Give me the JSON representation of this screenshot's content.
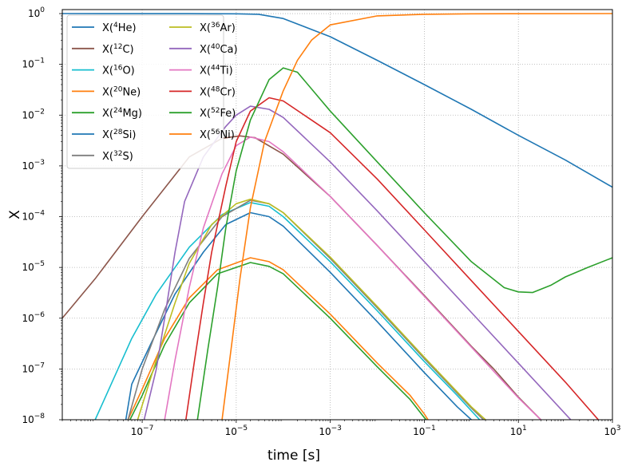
{
  "chart_data": {
    "type": "line",
    "title": "",
    "xlabel": "time [s]",
    "ylabel": "X",
    "xscale": "log",
    "yscale": "log",
    "xlim": [
      2e-09,
      1000
    ],
    "ylim": [
      1e-08,
      1.2
    ],
    "grid": true,
    "legend_placement": "top-left",
    "legend_columns": 2,
    "x_ticks": [
      {
        "value": 1e-07,
        "base": "10",
        "exp": "−7"
      },
      {
        "value": 1e-05,
        "base": "10",
        "exp": "−5"
      },
      {
        "value": 0.001,
        "base": "10",
        "exp": "−3"
      },
      {
        "value": 0.1,
        "base": "10",
        "exp": "−1"
      },
      {
        "value": 10,
        "base": "10",
        "exp": "1"
      },
      {
        "value": 1000,
        "base": "10",
        "exp": "3"
      }
    ],
    "y_ticks": [
      {
        "value": 1e-08,
        "base": "10",
        "exp": "−8"
      },
      {
        "value": 1e-07,
        "base": "10",
        "exp": "−7"
      },
      {
        "value": 1e-06,
        "base": "10",
        "exp": "−6"
      },
      {
        "value": 1e-05,
        "base": "10",
        "exp": "−5"
      },
      {
        "value": 0.0001,
        "base": "10",
        "exp": "−4"
      },
      {
        "value": 0.001,
        "base": "10",
        "exp": "−3"
      },
      {
        "value": 0.01,
        "base": "10",
        "exp": "−2"
      },
      {
        "value": 0.1,
        "base": "10",
        "exp": "−1"
      },
      {
        "value": 1,
        "base": "10",
        "exp": "0"
      }
    ],
    "series": [
      {
        "name": "X(4He)",
        "pre": "X(",
        "sup": "4",
        "el": "He",
        "post": ")",
        "color": "#1f77b4",
        "points": [
          [
            2e-09,
            1
          ],
          [
            1e-06,
            0.999
          ],
          [
            1e-05,
            0.99
          ],
          [
            3e-05,
            0.97
          ],
          [
            0.0001,
            0.8
          ],
          [
            0.001,
            0.35
          ],
          [
            0.01,
            0.12
          ],
          [
            0.1,
            0.04
          ],
          [
            1,
            0.013
          ],
          [
            10,
            0.004
          ],
          [
            100,
            0.0013
          ],
          [
            1000,
            0.00038
          ]
        ]
      },
      {
        "name": "X(12C)",
        "pre": "X(",
        "sup": "12",
        "el": "C",
        "post": ")",
        "color": "#8c564b",
        "points": [
          [
            2e-09,
            1e-06
          ],
          [
            1e-08,
            6e-06
          ],
          [
            1e-07,
            0.0001
          ],
          [
            1e-06,
            0.0015
          ],
          [
            5e-06,
            0.0035
          ],
          [
            1.2e-05,
            0.0039
          ],
          [
            2.5e-05,
            0.0036
          ],
          [
            0.0001,
            0.0017
          ],
          [
            0.001,
            0.00025
          ],
          [
            0.01,
            2.7e-05
          ],
          [
            0.1,
            2.8e-06
          ],
          [
            1,
            2.8e-07
          ],
          [
            3,
            1e-07
          ],
          [
            10,
            2.8e-08
          ],
          [
            30,
            1e-08
          ]
        ]
      },
      {
        "name": "X(16O)",
        "pre": "X(",
        "sup": "16",
        "el": "O",
        "post": ")",
        "color": "#17becf",
        "points": [
          [
            1e-08,
            1e-08
          ],
          [
            6e-08,
            4e-07
          ],
          [
            2e-07,
            3e-06
          ],
          [
            1e-06,
            2.5e-05
          ],
          [
            5e-06,
            0.00011
          ],
          [
            2e-05,
            0.00019
          ],
          [
            5e-05,
            0.00016
          ],
          [
            0.0001,
            0.0001
          ],
          [
            0.001,
            1.3e-05
          ],
          [
            0.01,
            1.4e-06
          ],
          [
            0.1,
            1.4e-07
          ],
          [
            0.5,
            3e-08
          ],
          [
            1,
            1.5e-08
          ],
          [
            1.5,
            1e-08
          ]
        ]
      },
      {
        "name": "X(20Ne)",
        "pre": "X(",
        "sup": "20",
        "el": "Ne",
        "post": ")",
        "color": "#ff7f0e",
        "points": [
          [
            5e-08,
            1e-08
          ],
          [
            1e-07,
            4e-08
          ],
          [
            3e-07,
            4e-07
          ],
          [
            1e-06,
            2.5e-06
          ],
          [
            4e-06,
            9e-06
          ],
          [
            2e-05,
            1.55e-05
          ],
          [
            5e-05,
            1.3e-05
          ],
          [
            0.0001,
            9e-06
          ],
          [
            0.001,
            1.2e-06
          ],
          [
            0.01,
            1.3e-07
          ],
          [
            0.05,
            3e-08
          ],
          [
            0.1,
            1.3e-08
          ],
          [
            0.12,
            1e-08
          ]
        ]
      },
      {
        "name": "X(24Mg)",
        "pre": "X(",
        "sup": "24",
        "el": "Mg",
        "post": ")",
        "color": "#2ca02c",
        "points": [
          [
            5.5e-08,
            1e-08
          ],
          [
            1e-07,
            3e-08
          ],
          [
            3e-07,
            3e-07
          ],
          [
            1e-06,
            2e-06
          ],
          [
            4e-06,
            7.5e-06
          ],
          [
            2e-05,
            1.25e-05
          ],
          [
            5e-05,
            1.05e-05
          ],
          [
            0.0001,
            7.5e-06
          ],
          [
            0.001,
            1e-06
          ],
          [
            0.01,
            1.1e-07
          ],
          [
            0.05,
            2.5e-08
          ],
          [
            0.1,
            1.1e-08
          ],
          [
            0.11,
            1e-08
          ]
        ]
      },
      {
        "name": "X(28Si)",
        "pre": "X(",
        "sup": "28",
        "el": "Si",
        "post": ")",
        "color": "#1f77b4",
        "points": [
          [
            4.5e-08,
            1e-08
          ],
          [
            6e-08,
            5e-08
          ],
          [
            1.5e-07,
            3e-07
          ],
          [
            5e-07,
            3e-06
          ],
          [
            2e-06,
            2e-05
          ],
          [
            6e-06,
            7e-05
          ],
          [
            2e-05,
            0.00012
          ],
          [
            5e-05,
            0.0001
          ],
          [
            0.0001,
            6.5e-05
          ],
          [
            0.001,
            8e-06
          ],
          [
            0.01,
            8.5e-07
          ],
          [
            0.1,
            8.5e-08
          ],
          [
            0.5,
            1.8e-08
          ],
          [
            1,
            1e-08
          ]
        ]
      },
      {
        "name": "X(32S)",
        "pre": "X(",
        "sup": "32",
        "el": "S",
        "post": ")",
        "color": "#7f7f7f",
        "points": [
          [
            5e-08,
            1e-08
          ],
          [
            1e-07,
            1e-07
          ],
          [
            3e-07,
            1.5e-06
          ],
          [
            1e-06,
            1.5e-05
          ],
          [
            5e-06,
            0.0001
          ],
          [
            2e-05,
            0.00021
          ],
          [
            5e-05,
            0.00018
          ],
          [
            0.0001,
            0.00012
          ],
          [
            0.001,
            1.5e-05
          ],
          [
            0.01,
            1.6e-06
          ],
          [
            0.1,
            1.6e-07
          ],
          [
            1,
            1.7e-08
          ],
          [
            1.8,
            1e-08
          ]
        ]
      },
      {
        "name": "X(36Ar)",
        "pre": "X(",
        "sup": "36",
        "el": "Ar",
        "post": ")",
        "color": "#bcbd22",
        "points": [
          [
            8e-08,
            1e-08
          ],
          [
            2e-07,
            1.5e-07
          ],
          [
            5e-07,
            2e-06
          ],
          [
            1e-06,
            1.2e-05
          ],
          [
            3e-06,
            7e-05
          ],
          [
            1e-05,
            0.00018
          ],
          [
            2e-05,
            0.00022
          ],
          [
            5e-05,
            0.00018
          ],
          [
            0.0001,
            0.00012
          ],
          [
            0.001,
            1.6e-05
          ],
          [
            0.01,
            1.7e-06
          ],
          [
            0.1,
            1.7e-07
          ],
          [
            1,
            1.8e-08
          ],
          [
            2,
            1e-08
          ]
        ]
      },
      {
        "name": "X(40Ca)",
        "pre": "X(",
        "sup": "40",
        "el": "Ca",
        "post": ")",
        "color": "#9467bd",
        "points": [
          [
            1.1e-07,
            1e-08
          ],
          [
            2e-07,
            1e-07
          ],
          [
            3e-07,
            1e-06
          ],
          [
            5e-07,
            2e-05
          ],
          [
            8e-07,
            0.0002
          ],
          [
            2e-06,
            0.0015
          ],
          [
            6e-06,
            0.006
          ],
          [
            1e-05,
            0.01
          ],
          [
            2e-05,
            0.015
          ],
          [
            5e-05,
            0.013
          ],
          [
            0.0001,
            0.009
          ],
          [
            0.001,
            0.0012
          ],
          [
            0.01,
            0.00013
          ],
          [
            0.1,
            1.3e-05
          ],
          [
            1,
            1.3e-06
          ],
          [
            10,
            1.3e-07
          ],
          [
            100,
            1.3e-08
          ],
          [
            130,
            1e-08
          ]
        ]
      },
      {
        "name": "X(44Ti)",
        "pre": "X(",
        "sup": "44",
        "el": "Ti",
        "post": ")",
        "color": "#e377c2",
        "points": [
          [
            3e-07,
            1e-08
          ],
          [
            5e-07,
            1.5e-07
          ],
          [
            1e-06,
            4e-06
          ],
          [
            2e-06,
            6e-05
          ],
          [
            5e-06,
            0.0007
          ],
          [
            1e-05,
            0.0025
          ],
          [
            2e-05,
            0.0037
          ],
          [
            5e-05,
            0.003
          ],
          [
            0.0001,
            0.0019
          ],
          [
            0.001,
            0.00025
          ],
          [
            0.01,
            2.7e-05
          ],
          [
            0.1,
            2.7e-06
          ],
          [
            1,
            2.7e-07
          ],
          [
            3,
            9e-08
          ],
          [
            10,
            2.7e-08
          ],
          [
            30,
            1e-08
          ]
        ]
      },
      {
        "name": "X(48Cr)",
        "pre": "X(",
        "sup": "48",
        "el": "Cr",
        "post": ")",
        "color": "#d62728",
        "points": [
          [
            8.5e-07,
            1e-08
          ],
          [
            1.3e-06,
            1.5e-07
          ],
          [
            2e-06,
            2e-06
          ],
          [
            3e-06,
            2e-05
          ],
          [
            6e-06,
            0.0004
          ],
          [
            1e-05,
            0.003
          ],
          [
            2e-05,
            0.012
          ],
          [
            5e-05,
            0.022
          ],
          [
            0.0001,
            0.019
          ],
          [
            0.001,
            0.0045
          ],
          [
            0.01,
            0.00055
          ],
          [
            0.1,
            5.5e-05
          ],
          [
            1,
            5.5e-06
          ],
          [
            10,
            5.5e-07
          ],
          [
            100,
            5.5e-08
          ],
          [
            500,
            1e-08
          ]
        ]
      },
      {
        "name": "X(52Fe)",
        "pre": "X(",
        "sup": "52",
        "el": "Fe",
        "post": ")",
        "color": "#2ca02c",
        "points": [
          [
            1.5e-06,
            1e-08
          ],
          [
            2.5e-06,
            2.5e-07
          ],
          [
            4e-06,
            4e-06
          ],
          [
            6e-06,
            6e-05
          ],
          [
            1e-05,
            0.0008
          ],
          [
            2e-05,
            0.008
          ],
          [
            5e-05,
            0.05
          ],
          [
            0.0001,
            0.085
          ],
          [
            0.0002,
            0.07
          ],
          [
            0.001,
            0.012
          ],
          [
            0.01,
            0.0012
          ],
          [
            0.1,
            0.00012
          ],
          [
            1,
            1.3e-05
          ],
          [
            5,
            4e-06
          ],
          [
            10,
            3.3e-06
          ],
          [
            20,
            3.2e-06
          ],
          [
            50,
            4.5e-06
          ],
          [
            100,
            6.5e-06
          ],
          [
            300,
            1e-05
          ],
          [
            1000,
            1.55e-05
          ]
        ]
      },
      {
        "name": "X(56Ni)",
        "pre": "X(",
        "sup": "56",
        "el": "Ni",
        "post": ")",
        "color": "#ff7f0e",
        "points": [
          [
            5e-06,
            1e-08
          ],
          [
            8e-06,
            3e-07
          ],
          [
            1.2e-05,
            6e-06
          ],
          [
            2e-05,
            0.00015
          ],
          [
            4e-05,
            0.003
          ],
          [
            0.0001,
            0.03
          ],
          [
            0.0002,
            0.12
          ],
          [
            0.0004,
            0.3
          ],
          [
            0.001,
            0.6
          ],
          [
            0.01,
            0.9
          ],
          [
            0.1,
            0.97
          ],
          [
            1,
            0.99
          ],
          [
            1000,
            1
          ]
        ]
      }
    ]
  }
}
